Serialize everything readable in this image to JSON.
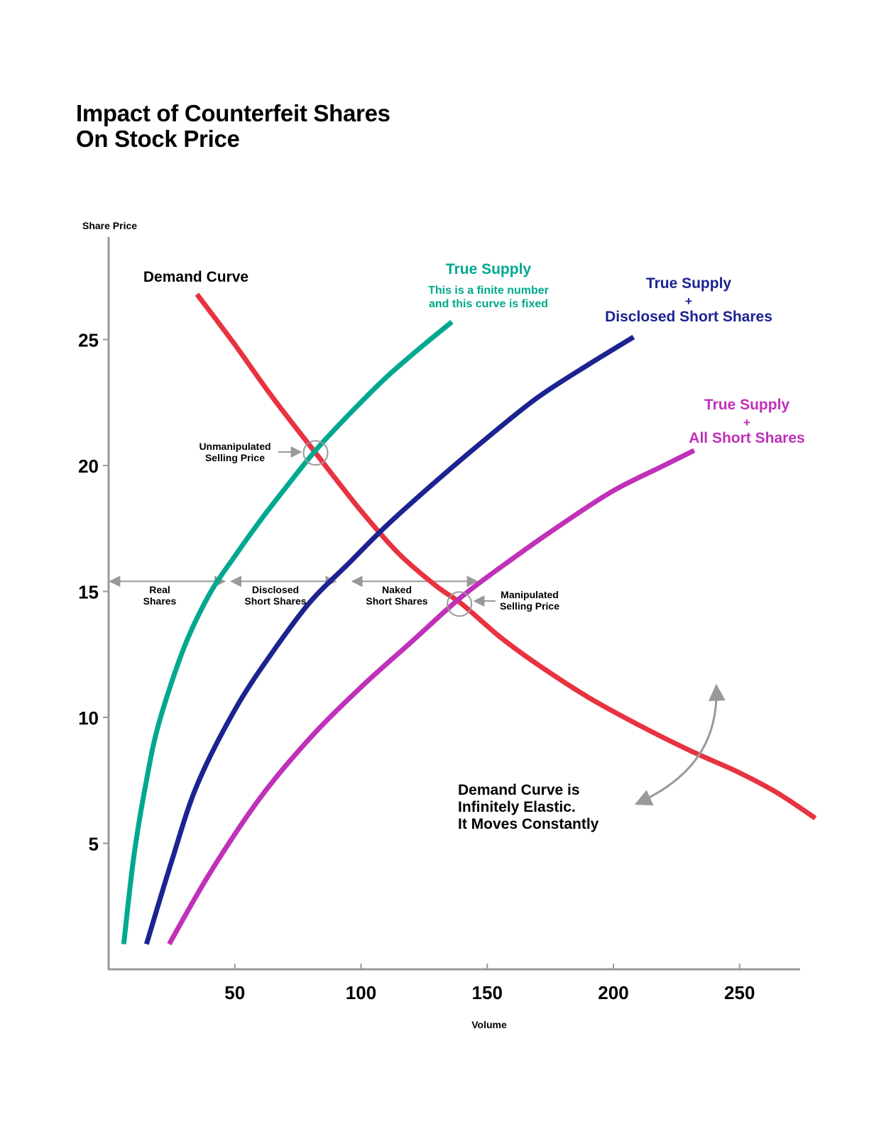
{
  "title": {
    "line1": "Impact of Counterfeit Shares",
    "line2": "On Stock Price"
  },
  "colors": {
    "demand": "#e8333f",
    "true_supply": "#00a88f",
    "supply_disclosed": "#1c2391",
    "supply_all_short": "#c030b8",
    "axis": "#999999",
    "annotation": "#999999",
    "text": "#000000"
  },
  "chart_data": {
    "type": "line",
    "xlabel": "Volume",
    "ylabel": "Share Price",
    "xlim": [
      0,
      275
    ],
    "ylim": [
      0,
      29
    ],
    "x_ticks": [
      50,
      100,
      150,
      200,
      250
    ],
    "y_ticks": [
      5,
      10,
      15,
      20,
      25
    ],
    "x_tick_labels": [
      "50",
      "100",
      "150",
      "200",
      "250"
    ],
    "y_tick_labels": [
      "5",
      "10",
      "15",
      "20",
      "25"
    ],
    "grid": false,
    "series": [
      {
        "name": "Demand Curve",
        "color": "#e8333f",
        "x": [
          35,
          50,
          65,
          82,
          100,
          115,
          130,
          140,
          155,
          170,
          190,
          210,
          230,
          250,
          265,
          280
        ],
        "y": [
          26.8,
          24.8,
          22.7,
          20.5,
          18.2,
          16.5,
          15.2,
          14.5,
          13.2,
          12.1,
          10.8,
          9.7,
          8.7,
          7.8,
          7.0,
          6.0
        ]
      },
      {
        "name": "True Supply",
        "color": "#00a88f",
        "x": [
          6,
          10,
          15,
          20,
          30,
          40,
          50,
          60,
          70,
          82,
          95,
          110,
          125,
          136
        ],
        "y": [
          1.0,
          4.5,
          7.5,
          9.8,
          12.8,
          14.9,
          16.4,
          17.8,
          19.1,
          20.6,
          22.0,
          23.5,
          24.8,
          25.7
        ]
      },
      {
        "name": "True Supply + Disclosed Short Shares",
        "color": "#1c2391",
        "x": [
          15,
          25,
          35,
          50,
          65,
          80,
          95,
          110,
          130,
          150,
          170,
          190,
          208
        ],
        "y": [
          1.0,
          4.3,
          7.3,
          10.3,
          12.6,
          14.6,
          16.1,
          17.6,
          19.4,
          21.1,
          22.7,
          24.0,
          25.1
        ]
      },
      {
        "name": "True Supply + All Short Shares",
        "color": "#c030b8",
        "x": [
          24,
          40,
          60,
          80,
          100,
          120,
          140,
          160,
          180,
          200,
          220,
          232
        ],
        "y": [
          1.0,
          3.8,
          6.8,
          9.2,
          11.2,
          13.0,
          14.8,
          16.3,
          17.7,
          19.0,
          20.0,
          20.6
        ]
      }
    ],
    "legend": [
      {
        "title": "Demand Curve",
        "color": "#000000"
      },
      {
        "title": "True Supply",
        "subtitle_line1": "This is a finite number",
        "subtitle_line2": "and this curve is fixed",
        "color": "#00a88f"
      },
      {
        "line1": "True Supply",
        "line2": "+",
        "line3": "Disclosed Short Shares",
        "color": "#1c2391"
      },
      {
        "line1": "True Supply",
        "line2": "+",
        "line3": "All Short Shares",
        "color": "#c030b8"
      }
    ],
    "intersections": [
      {
        "x": 82,
        "y": 20.5,
        "label_line1": "Unmanipulated",
        "label_line2": "Selling Price"
      },
      {
        "x": 139,
        "y": 14.5,
        "label_line1": "Manipulated",
        "label_line2": "Selling Price"
      }
    ],
    "spans": [
      {
        "x_start": 0,
        "x_end": 46,
        "y": 15.4,
        "label_line1": "Real",
        "label_line2": "Shares"
      },
      {
        "x_start": 48,
        "x_end": 90,
        "y": 15.4,
        "label_line1": "Disclosed",
        "label_line2": "Short Shares"
      },
      {
        "x_start": 96,
        "x_end": 146,
        "y": 15.4,
        "label_line1": "Naked",
        "label_line2": "Short Shares"
      }
    ],
    "note": {
      "line1": "Demand Curve is",
      "line2": "Infinitely Elastic.",
      "line3": "It Moves Constantly"
    }
  }
}
